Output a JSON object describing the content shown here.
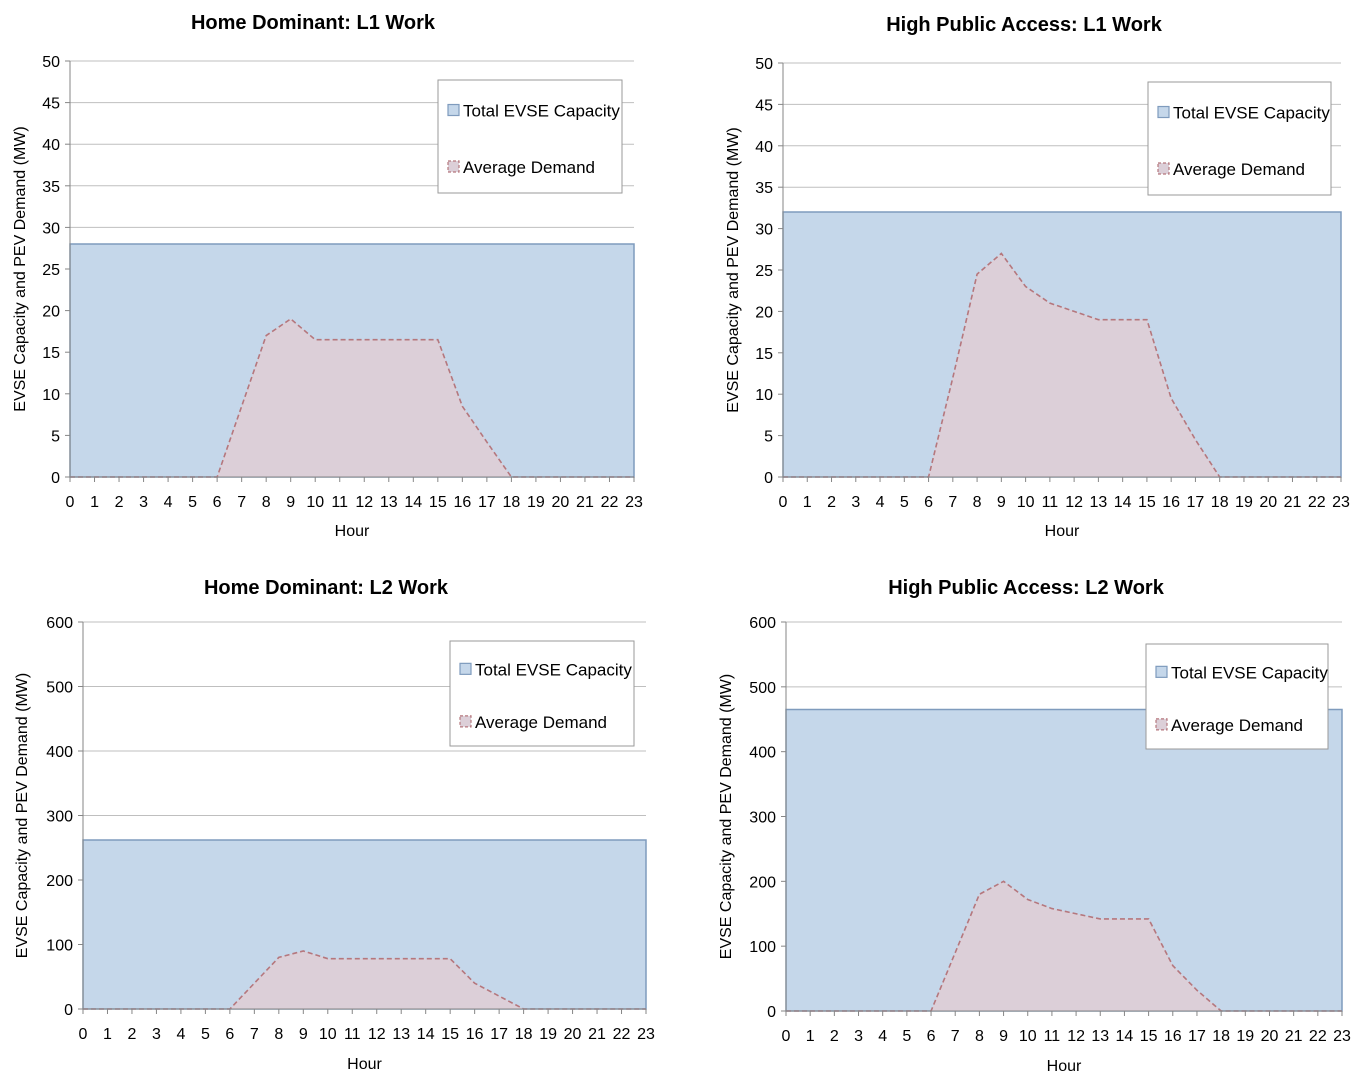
{
  "legend": {
    "capacity_label": "Total EVSE Capacity",
    "demand_label": "Average Demand"
  },
  "colors": {
    "capacity_fill": "#c5d7ea",
    "capacity_stroke": "#7f9bbd",
    "demand_fill": "#dccfd8",
    "demand_stroke": "#b5777d",
    "grid": "#bfbfbf",
    "axis": "#868686"
  },
  "chart_data": [
    {
      "type": "area",
      "title": "Home Dominant: L1 Work",
      "xlabel": "Hour",
      "ylabel": "EVSE Capacity and PEV Demand (MW)",
      "x": [
        0,
        1,
        2,
        3,
        4,
        5,
        6,
        7,
        8,
        9,
        10,
        11,
        12,
        13,
        14,
        15,
        16,
        17,
        18,
        19,
        20,
        21,
        22,
        23
      ],
      "xticks": [
        "0",
        "1",
        "2",
        "3",
        "4",
        "5",
        "6",
        "7",
        "8",
        "9",
        "10",
        "11",
        "12",
        "13",
        "14",
        "15",
        "16",
        "17",
        "18",
        "19",
        "20",
        "21",
        "22",
        "23"
      ],
      "ylim": [
        0,
        50
      ],
      "yticks": [
        "0",
        "5",
        "10",
        "15",
        "20",
        "25",
        "30",
        "35",
        "40",
        "45",
        "50"
      ],
      "legend_position": "top-right",
      "grid": true,
      "series": [
        {
          "name": "Total EVSE Capacity",
          "values": [
            28,
            28,
            28,
            28,
            28,
            28,
            28,
            28,
            28,
            28,
            28,
            28,
            28,
            28,
            28,
            28,
            28,
            28,
            28,
            28,
            28,
            28,
            28,
            28
          ]
        },
        {
          "name": "Average Demand",
          "values": [
            0,
            0,
            0,
            0,
            0,
            0,
            0,
            8.5,
            17,
            19,
            16.5,
            16.5,
            16.5,
            16.5,
            16.5,
            16.5,
            8.5,
            4.2,
            0,
            0,
            0,
            0,
            0,
            0
          ]
        }
      ]
    },
    {
      "type": "area",
      "title": "High Public Access: L1 Work",
      "xlabel": "Hour",
      "ylabel": "EVSE Capacity and PEV Demand (MW)",
      "x": [
        0,
        1,
        2,
        3,
        4,
        5,
        6,
        7,
        8,
        9,
        10,
        11,
        12,
        13,
        14,
        15,
        16,
        17,
        18,
        19,
        20,
        21,
        22,
        23
      ],
      "xticks": [
        "0",
        "1",
        "2",
        "3",
        "4",
        "5",
        "6",
        "7",
        "8",
        "9",
        "10",
        "11",
        "12",
        "13",
        "14",
        "15",
        "16",
        "17",
        "18",
        "19",
        "20",
        "21",
        "22",
        "23"
      ],
      "ylim": [
        0,
        50
      ],
      "yticks": [
        "0",
        "5",
        "10",
        "15",
        "20",
        "25",
        "30",
        "35",
        "40",
        "45",
        "50"
      ],
      "legend_position": "top-right",
      "grid": true,
      "series": [
        {
          "name": "Total EVSE Capacity",
          "values": [
            32,
            32,
            32,
            32,
            32,
            32,
            32,
            32,
            32,
            32,
            32,
            32,
            32,
            32,
            32,
            32,
            32,
            32,
            32,
            32,
            32,
            32,
            32,
            32
          ]
        },
        {
          "name": "Average Demand",
          "values": [
            0,
            0,
            0,
            0,
            0,
            0,
            0,
            12,
            24.5,
            27,
            23,
            21,
            20,
            19,
            19,
            19,
            9.5,
            4.5,
            0,
            0,
            0,
            0,
            0,
            0
          ]
        }
      ]
    },
    {
      "type": "area",
      "title": "Home Dominant: L2 Work",
      "xlabel": "Hour",
      "ylabel": "EVSE Capacity and PEV Demand (MW)",
      "x": [
        0,
        1,
        2,
        3,
        4,
        5,
        6,
        7,
        8,
        9,
        10,
        11,
        12,
        13,
        14,
        15,
        16,
        17,
        18,
        19,
        20,
        21,
        22,
        23
      ],
      "xticks": [
        "0",
        "1",
        "2",
        "3",
        "4",
        "5",
        "6",
        "7",
        "8",
        "9",
        "10",
        "11",
        "12",
        "13",
        "14",
        "15",
        "16",
        "17",
        "18",
        "19",
        "20",
        "21",
        "22",
        "23"
      ],
      "ylim": [
        0,
        600
      ],
      "yticks": [
        "0",
        "100",
        "200",
        "300",
        "400",
        "500",
        "600"
      ],
      "legend_position": "top-right",
      "grid": true,
      "series": [
        {
          "name": "Total EVSE Capacity",
          "values": [
            262,
            262,
            262,
            262,
            262,
            262,
            262,
            262,
            262,
            262,
            262,
            262,
            262,
            262,
            262,
            262,
            262,
            262,
            262,
            262,
            262,
            262,
            262,
            262
          ]
        },
        {
          "name": "Average Demand",
          "values": [
            0,
            0,
            0,
            0,
            0,
            0,
            0,
            40,
            80,
            90,
            78,
            78,
            78,
            78,
            78,
            78,
            40,
            20,
            0,
            0,
            0,
            0,
            0,
            0
          ]
        }
      ]
    },
    {
      "type": "area",
      "title": "High Public Access: L2 Work",
      "xlabel": "Hour",
      "ylabel": "EVSE Capacity and PEV Demand (MW)",
      "x": [
        0,
        1,
        2,
        3,
        4,
        5,
        6,
        7,
        8,
        9,
        10,
        11,
        12,
        13,
        14,
        15,
        16,
        17,
        18,
        19,
        20,
        21,
        22,
        23
      ],
      "xticks": [
        "0",
        "1",
        "2",
        "3",
        "4",
        "5",
        "6",
        "7",
        "8",
        "9",
        "10",
        "11",
        "12",
        "13",
        "14",
        "15",
        "16",
        "17",
        "18",
        "19",
        "20",
        "21",
        "22",
        "23"
      ],
      "ylim": [
        0,
        600
      ],
      "yticks": [
        "0",
        "100",
        "200",
        "300",
        "400",
        "500",
        "600"
      ],
      "legend_position": "top-right",
      "grid": true,
      "series": [
        {
          "name": "Total EVSE Capacity",
          "values": [
            465,
            465,
            465,
            465,
            465,
            465,
            465,
            465,
            465,
            465,
            465,
            465,
            465,
            465,
            465,
            465,
            465,
            465,
            465,
            465,
            465,
            465,
            465,
            465
          ]
        },
        {
          "name": "Average Demand",
          "values": [
            0,
            0,
            0,
            0,
            0,
            0,
            0,
            90,
            180,
            200,
            172,
            158,
            150,
            142,
            142,
            142,
            70,
            32,
            0,
            0,
            0,
            0,
            0,
            0
          ]
        }
      ]
    }
  ]
}
